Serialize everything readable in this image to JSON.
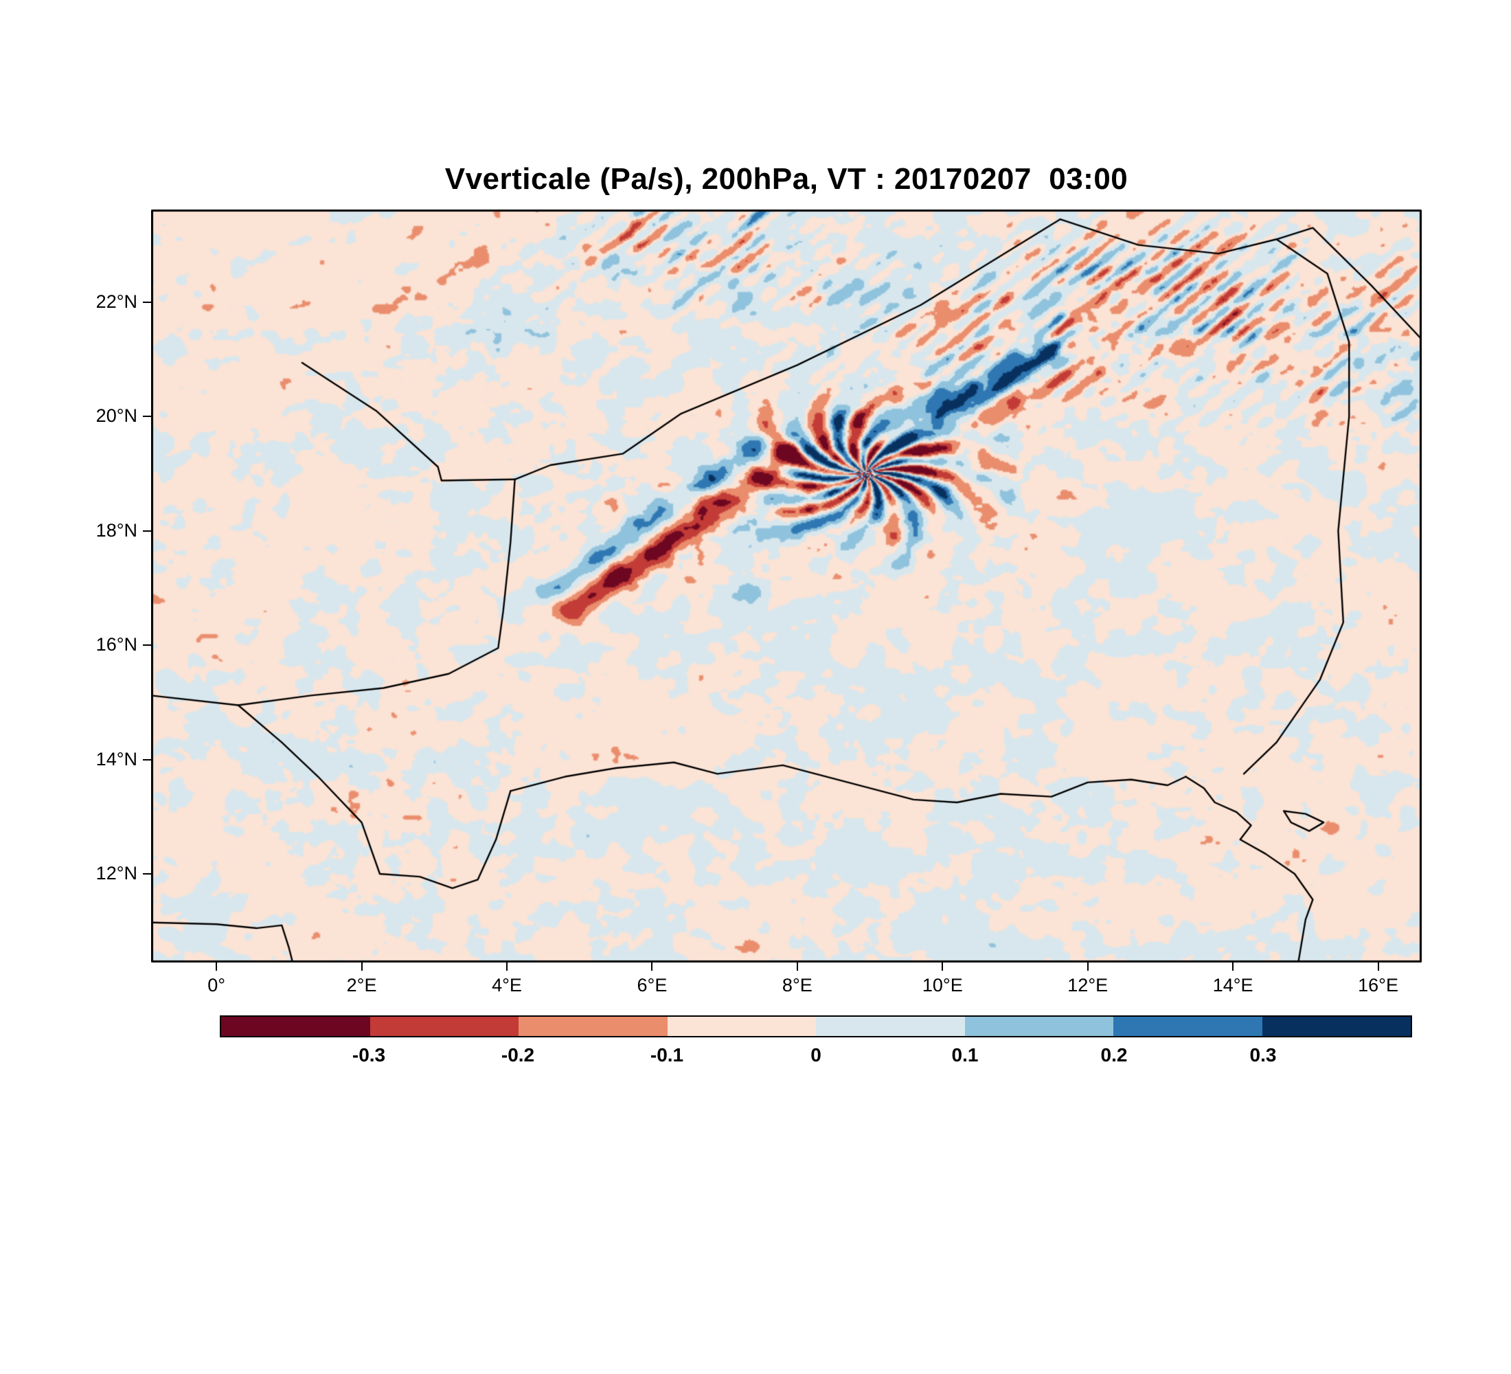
{
  "figure": {
    "title": "Vverticale (Pa/s), 200hPa, VT : 20170207  03:00"
  },
  "chart_data": {
    "type": "heatmap",
    "title": "Vverticale (Pa/s), 200hPa, VT : 20170207  03:00",
    "variable": "Vverticale",
    "units": "Pa/s",
    "pressure_level": "200hPa",
    "valid_time_label": "VT : 20170207  03:00",
    "extent": {
      "lon_min": -0.9,
      "lon_max": 16.6,
      "lat_min": 10.45,
      "lat_max": 23.62
    },
    "x_ticks": [
      {
        "lon": 0,
        "label": "0°"
      },
      {
        "lon": 2,
        "label": "2°E"
      },
      {
        "lon": 4,
        "label": "4°E"
      },
      {
        "lon": 6,
        "label": "6°E"
      },
      {
        "lon": 8,
        "label": "8°E"
      },
      {
        "lon": 10,
        "label": "10°E"
      },
      {
        "lon": 12,
        "label": "12°E"
      },
      {
        "lon": 14,
        "label": "14°E"
      },
      {
        "lon": 16,
        "label": "16°E"
      }
    ],
    "y_ticks": [
      {
        "lat": 22,
        "label": "22°N"
      },
      {
        "lat": 20,
        "label": "20°N"
      },
      {
        "lat": 18,
        "label": "18°N"
      },
      {
        "lat": 16,
        "label": "16°N"
      },
      {
        "lat": 14,
        "label": "14°N"
      },
      {
        "lat": 12,
        "label": "12°N"
      }
    ],
    "colorbar": {
      "levels": [
        -0.3,
        -0.2,
        -0.1,
        0,
        0.1,
        0.2,
        0.3
      ],
      "tick_labels": [
        "-0.3",
        "-0.2",
        "-0.1",
        "0",
        "0.1",
        "0.2",
        "0.3"
      ],
      "colors": [
        "#6d0620",
        "#c23b36",
        "#ea8d6c",
        "#fbe3d5",
        "#d8e7ee",
        "#8fc2dc",
        "#2e77b3",
        "#07305f"
      ]
    },
    "field_summary": "Noisy positive/negative vertical-velocity anomalies (about ±0.4 Pa/s): strong wave trains and a radial burst pattern north of ~17°N over the Hoggar/Aïr region and NE corner, an intense SW-NE red/blue band near 5-8°E 17-19.5°N, quieter small-scale speckle south of 16°N",
    "borders": [
      [
        [
          1.18,
          20.94
        ],
        [
          2.2,
          20.1
        ],
        [
          3.05,
          19.12
        ],
        [
          3.1,
          18.88
        ],
        [
          4.11,
          18.9
        ]
      ],
      [
        [
          4.11,
          18.9
        ],
        [
          4.6,
          19.15
        ],
        [
          5.6,
          19.35
        ],
        [
          6.4,
          20.05
        ],
        [
          8.0,
          20.9
        ],
        [
          9.7,
          21.95
        ],
        [
          11.62,
          23.45
        ]
      ],
      [
        [
          11.62,
          23.45
        ],
        [
          12.7,
          23.0
        ],
        [
          13.8,
          22.85
        ],
        [
          14.6,
          23.1
        ],
        [
          15.1,
          23.3
        ],
        [
          15.9,
          22.3
        ],
        [
          16.6,
          21.35
        ]
      ],
      [
        [
          14.6,
          23.1
        ],
        [
          15.3,
          22.5
        ],
        [
          15.6,
          21.3
        ],
        [
          15.6,
          20.0
        ],
        [
          15.45,
          18.0
        ],
        [
          15.52,
          16.4
        ],
        [
          15.2,
          15.4
        ],
        [
          14.6,
          14.3
        ],
        [
          14.15,
          13.75
        ]
      ],
      [
        [
          4.11,
          18.9
        ],
        [
          4.05,
          17.8
        ],
        [
          3.95,
          16.6
        ],
        [
          3.88,
          15.95
        ],
        [
          3.2,
          15.5
        ],
        [
          2.3,
          15.25
        ],
        [
          1.3,
          15.12
        ],
        [
          0.3,
          14.95
        ],
        [
          -0.9,
          15.12
        ]
      ],
      [
        [
          0.3,
          14.95
        ],
        [
          0.9,
          14.3
        ],
        [
          1.4,
          13.7
        ],
        [
          2.0,
          12.9
        ],
        [
          2.25,
          12.0
        ],
        [
          2.8,
          11.95
        ],
        [
          3.25,
          11.75
        ],
        [
          3.6,
          11.9
        ],
        [
          3.85,
          12.6
        ],
        [
          4.05,
          13.45
        ]
      ],
      [
        [
          4.05,
          13.45
        ],
        [
          4.8,
          13.7
        ],
        [
          5.5,
          13.85
        ],
        [
          6.3,
          13.95
        ],
        [
          6.9,
          13.75
        ],
        [
          7.8,
          13.9
        ],
        [
          8.7,
          13.6
        ],
        [
          9.6,
          13.3
        ],
        [
          10.2,
          13.25
        ],
        [
          10.8,
          13.4
        ],
        [
          11.5,
          13.35
        ],
        [
          12.0,
          13.6
        ],
        [
          12.6,
          13.65
        ],
        [
          13.1,
          13.55
        ],
        [
          13.35,
          13.7
        ]
      ],
      [
        [
          13.35,
          13.7
        ],
        [
          13.6,
          13.5
        ],
        [
          13.75,
          13.25
        ],
        [
          14.05,
          13.08
        ],
        [
          14.25,
          12.85
        ],
        [
          14.1,
          12.6
        ],
        [
          14.45,
          12.35
        ],
        [
          14.85,
          12.0
        ],
        [
          15.1,
          11.55
        ],
        [
          15.0,
          11.2
        ],
        [
          14.9,
          10.45
        ]
      ],
      [
        [
          14.7,
          13.1
        ],
        [
          15.0,
          13.05
        ],
        [
          15.25,
          12.9
        ],
        [
          15.05,
          12.75
        ],
        [
          14.8,
          12.9
        ],
        [
          14.7,
          13.1
        ]
      ],
      [
        [
          -0.9,
          11.15
        ],
        [
          0.0,
          11.12
        ],
        [
          0.55,
          11.05
        ],
        [
          0.9,
          11.1
        ],
        [
          1.0,
          10.7
        ],
        [
          1.05,
          10.45
        ]
      ]
    ]
  }
}
